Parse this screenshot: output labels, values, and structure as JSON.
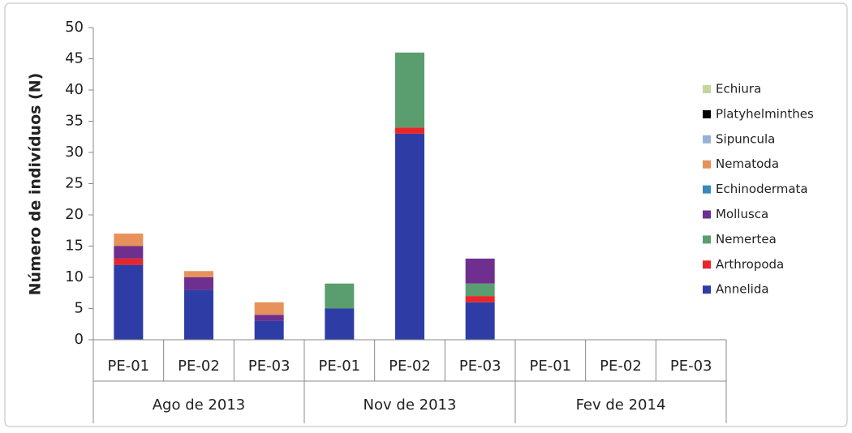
{
  "chart_data": {
    "type": "stacked_bar",
    "y_label": "Número de indivíduos (N)",
    "categories": [
      "PE-01",
      "PE-02",
      "PE-03",
      "PE-01",
      "PE-02",
      "PE-03",
      "PE-01",
      "PE-02",
      "PE-03"
    ],
    "groups": [
      "Ago de 2013",
      "Nov de 2013",
      "Fev de 2014"
    ],
    "series": [
      {
        "name": "Annelida",
        "color": "#2e3da6",
        "values": [
          12,
          8,
          3,
          5,
          33,
          6,
          0,
          0,
          0
        ]
      },
      {
        "name": "Arthropoda",
        "color": "#e8262a",
        "values": [
          1,
          0,
          0,
          0,
          1,
          1,
          0,
          0,
          0
        ]
      },
      {
        "name": "Nemertea",
        "color": "#5a9e6f",
        "values": [
          0,
          0,
          0,
          4,
          12,
          2,
          0,
          0,
          0
        ]
      },
      {
        "name": "Mollusca",
        "color": "#6f2f8f",
        "values": [
          2,
          2,
          1,
          0,
          0,
          4,
          0,
          0,
          0
        ]
      },
      {
        "name": "Echinodermata",
        "color": "#3a87c0",
        "values": [
          0,
          0,
          0,
          0,
          0,
          0,
          0,
          0,
          0
        ]
      },
      {
        "name": "Nematoda",
        "color": "#e6925a",
        "values": [
          2,
          1,
          2,
          0,
          0,
          0,
          0,
          0,
          0
        ]
      },
      {
        "name": "Sipuncula",
        "color": "#95b3d7",
        "values": [
          0,
          0,
          0,
          0,
          0,
          0,
          0,
          0,
          0
        ]
      },
      {
        "name": "Platyhelminthes",
        "color": "#000000",
        "values": [
          0,
          0,
          0,
          0,
          0,
          0,
          0,
          0,
          0
        ]
      },
      {
        "name": "Echiura",
        "color": "#c3d69b",
        "values": [
          0,
          0,
          0,
          0,
          0,
          0,
          0,
          0,
          0
        ]
      }
    ],
    "ylim": [
      0,
      50
    ],
    "yticks": [
      0,
      5,
      10,
      15,
      20,
      25,
      30,
      35,
      40,
      45,
      50
    ],
    "grid": false,
    "legend": "right"
  }
}
